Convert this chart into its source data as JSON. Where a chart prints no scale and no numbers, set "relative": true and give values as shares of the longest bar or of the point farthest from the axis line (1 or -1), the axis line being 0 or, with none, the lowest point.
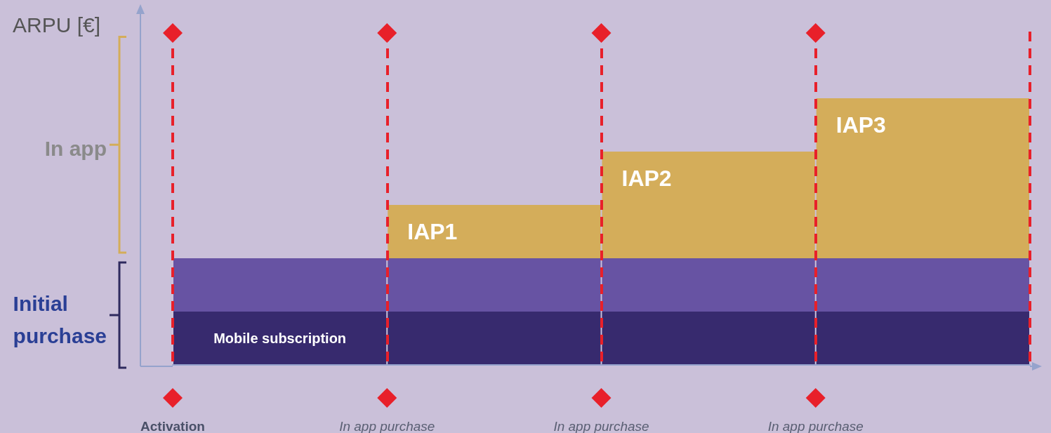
{
  "chart_data": {
    "type": "bar",
    "relative": true,
    "stacked": true,
    "ylabel": "ARPU [€]",
    "categories": [
      "Activation",
      "In app purchase",
      "In app purchase",
      "In app purchase"
    ],
    "series": [
      {
        "name": "Mobile subscription",
        "color": "#372a6e",
        "values": [
          0.2,
          0.2,
          0.2,
          0.2
        ]
      },
      {
        "color": "#6753a3",
        "values": [
          0.2,
          0.2,
          0.2,
          0.2
        ]
      },
      {
        "name": "IAP1",
        "color": "#d4ad5a",
        "values": [
          null,
          0.2,
          0.2,
          0.2
        ]
      },
      {
        "name": "IAP2",
        "color": "#d4ad5a",
        "values": [
          null,
          null,
          0.2,
          0.2
        ]
      },
      {
        "name": "IAP3",
        "color": "#d4ad5a",
        "values": [
          null,
          null,
          null,
          0.2
        ]
      }
    ],
    "annotations": [
      "In app",
      "Initial purchase"
    ],
    "grid": "x",
    "legend": false
  }
}
